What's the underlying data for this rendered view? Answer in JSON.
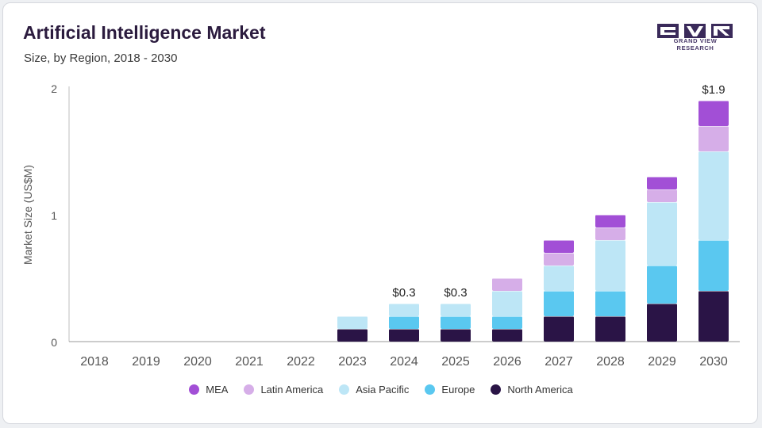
{
  "header": {
    "title": "Artificial Intelligence Market",
    "subtitle": "Size, by Region, 2018 - 2030",
    "logo_text": "GRAND VIEW RESEARCH"
  },
  "chart_data": {
    "type": "bar",
    "stacked": true,
    "categories": [
      "2018",
      "2019",
      "2020",
      "2021",
      "2022",
      "2023",
      "2024",
      "2025",
      "2026",
      "2027",
      "2028",
      "2029",
      "2030"
    ],
    "series": [
      {
        "name": "North America",
        "color": "#2a1446",
        "values": [
          0,
          0,
          0,
          0,
          0,
          0.1,
          0.1,
          0.1,
          0.1,
          0.2,
          0.2,
          0.3,
          0.4
        ]
      },
      {
        "name": "Europe",
        "color": "#5ac8f0",
        "values": [
          0,
          0,
          0,
          0,
          0,
          0,
          0.1,
          0.1,
          0.1,
          0.2,
          0.2,
          0.3,
          0.4
        ]
      },
      {
        "name": "Asia Pacific",
        "color": "#bde6f6",
        "values": [
          0,
          0,
          0,
          0,
          0,
          0.1,
          0.1,
          0.1,
          0.2,
          0.2,
          0.4,
          0.5,
          0.7
        ]
      },
      {
        "name": "Latin America",
        "color": "#d6aee8",
        "values": [
          0,
          0,
          0,
          0,
          0,
          0,
          0,
          0,
          0.1,
          0.1,
          0.1,
          0.1,
          0.2
        ]
      },
      {
        "name": "MEA",
        "color": "#a24fd6",
        "values": [
          0,
          0,
          0,
          0,
          0,
          0,
          0,
          0,
          0,
          0.1,
          0.1,
          0.1,
          0.2
        ]
      }
    ],
    "data_labels": [
      {
        "category": "2024",
        "text": "$0.3",
        "value": 0.3
      },
      {
        "category": "2025",
        "text": "$0.3",
        "value": 0.3
      },
      {
        "category": "2030",
        "text": "$1.9",
        "value": 1.9
      }
    ],
    "ylabel": "Market Size (US$M)",
    "xlabel": "",
    "ylim": [
      0,
      2
    ],
    "yticks": [
      "0",
      "1",
      "2"
    ],
    "legend_order": [
      "MEA",
      "Latin America",
      "Asia Pacific",
      "Europe",
      "North America"
    ],
    "legend_position": "bottom",
    "grid": false
  }
}
